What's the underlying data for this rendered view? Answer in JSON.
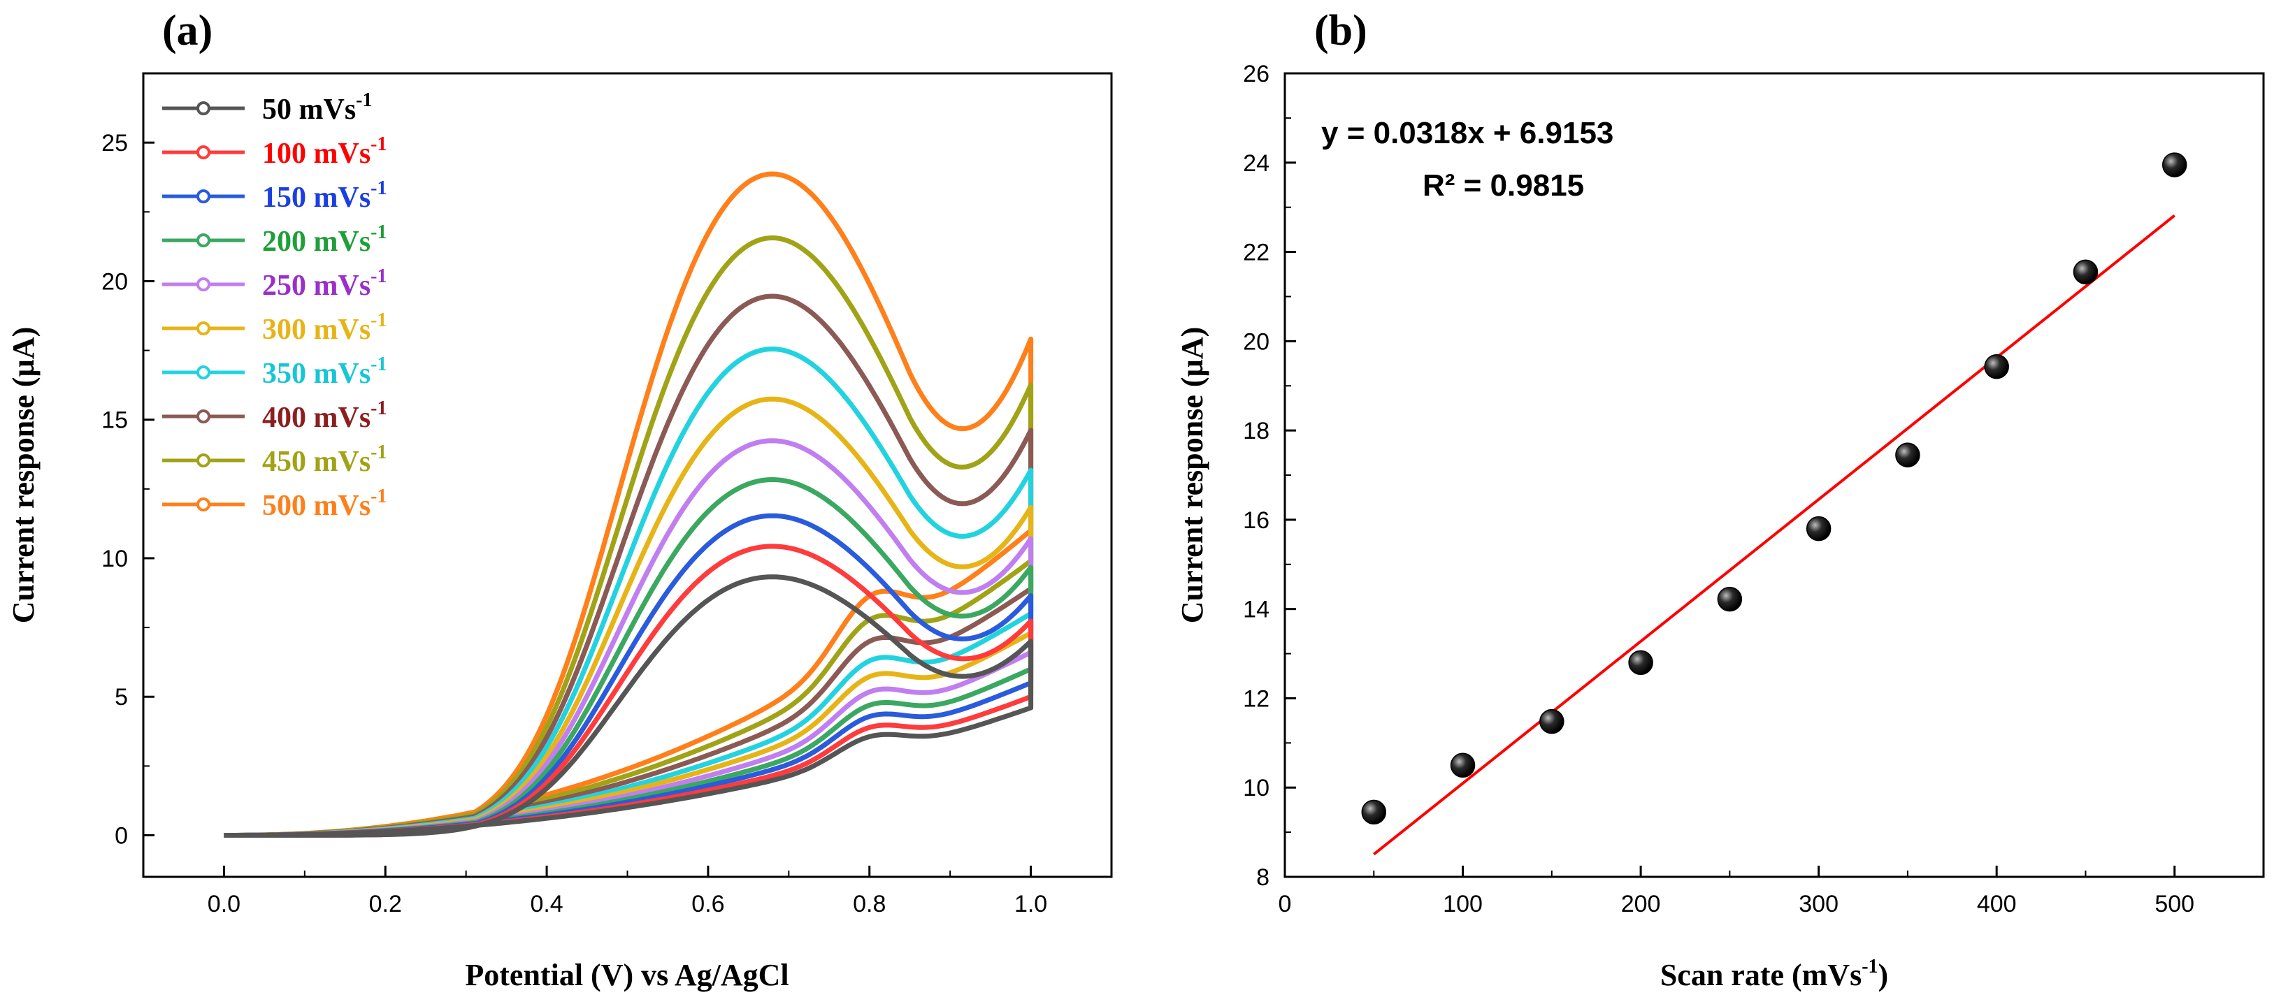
{
  "chart_data": [
    {
      "panel_label": "(a)",
      "type": "line",
      "xlabel": "Potential (V) vs Ag/AgCl",
      "ylabel": "Current response (µA)",
      "xlim": [
        -0.1,
        1.1
      ],
      "ylim": [
        -1.5,
        27.5
      ],
      "xticks": [
        "0.0",
        "0.2",
        "0.4",
        "0.6",
        "0.8",
        "1.0"
      ],
      "yticks": [
        "0",
        "5",
        "10",
        "15",
        "20",
        "25"
      ],
      "legend_position": "top-left",
      "grid": false,
      "series": [
        {
          "name": "50 mVs",
          "name_sup": "-1",
          "color": "#555555",
          "peak": 9.3,
          "end": 6.8,
          "rev_end": 4.6
        },
        {
          "name": "100 mVs",
          "name_sup": "-1",
          "color": "#ff3b3b",
          "peak": 10.4,
          "end": 7.5,
          "rev_end": 5.0
        },
        {
          "name": "150 mVs",
          "name_sup": "-1",
          "color": "#2a5bdc",
          "peak": 11.5,
          "end": 8.4,
          "rev_end": 5.5
        },
        {
          "name": "200 mVs",
          "name_sup": "-1",
          "color": "#3aa860",
          "peak": 12.8,
          "end": 9.4,
          "rev_end": 6.0
        },
        {
          "name": "250 mVs",
          "name_sup": "-1",
          "color": "#c07ef0",
          "peak": 14.2,
          "end": 10.4,
          "rev_end": 6.6
        },
        {
          "name": "300 mVs",
          "name_sup": "-1",
          "color": "#e7b417",
          "peak": 15.7,
          "end": 11.5,
          "rev_end": 7.3
        },
        {
          "name": "350 mVs",
          "name_sup": "-1",
          "color": "#22d3df",
          "peak": 17.5,
          "end": 12.8,
          "rev_end": 8.0
        },
        {
          "name": "400 mVs",
          "name_sup": "-1",
          "color": "#8b5a55",
          "peak": 19.4,
          "end": 14.2,
          "rev_end": 8.9
        },
        {
          "name": "450 mVs",
          "name_sup": "-1",
          "color": "#a0a316",
          "peak": 21.5,
          "end": 15.8,
          "rev_end": 9.9
        },
        {
          "name": "500 mVs",
          "name_sup": "-1",
          "color": "#ff7f1a",
          "peak": 23.8,
          "end": 17.4,
          "rev_end": 11.0
        }
      ],
      "legend_colors": [
        "#000000",
        "#ff0000",
        "#1b3fe0",
        "#1f9e3a",
        "#9b2fc9",
        "#e7b417",
        "#17c6d6",
        "#8b1f1f",
        "#a0a316",
        "#ff7f1a"
      ]
    },
    {
      "panel_label": "(b)",
      "type": "scatter",
      "xlabel": "Scan rate (mVs",
      "xlabel_sup": "-1",
      "xlabel_end": ")",
      "ylabel": "Current response (µA)",
      "xlim": [
        0,
        550
      ],
      "ylim": [
        8,
        26
      ],
      "xticks": [
        "0",
        "100",
        "200",
        "300",
        "400",
        "500"
      ],
      "yticks": [
        "8",
        "10",
        "12",
        "14",
        "16",
        "18",
        "20",
        "22",
        "24",
        "26"
      ],
      "x": [
        50,
        100,
        150,
        200,
        250,
        300,
        350,
        400,
        450,
        500
      ],
      "y": [
        9.45,
        10.5,
        11.48,
        12.8,
        14.22,
        15.8,
        17.45,
        19.43,
        21.55,
        23.95
      ],
      "fit": {
        "slope": 0.0318,
        "intercept": 6.9153,
        "x_range": [
          50,
          500
        ],
        "color": "#ff0000"
      },
      "equation": "y = 0.0318x + 6.9153",
      "r_squared": "R² = 0.9815",
      "grid": false
    }
  ]
}
